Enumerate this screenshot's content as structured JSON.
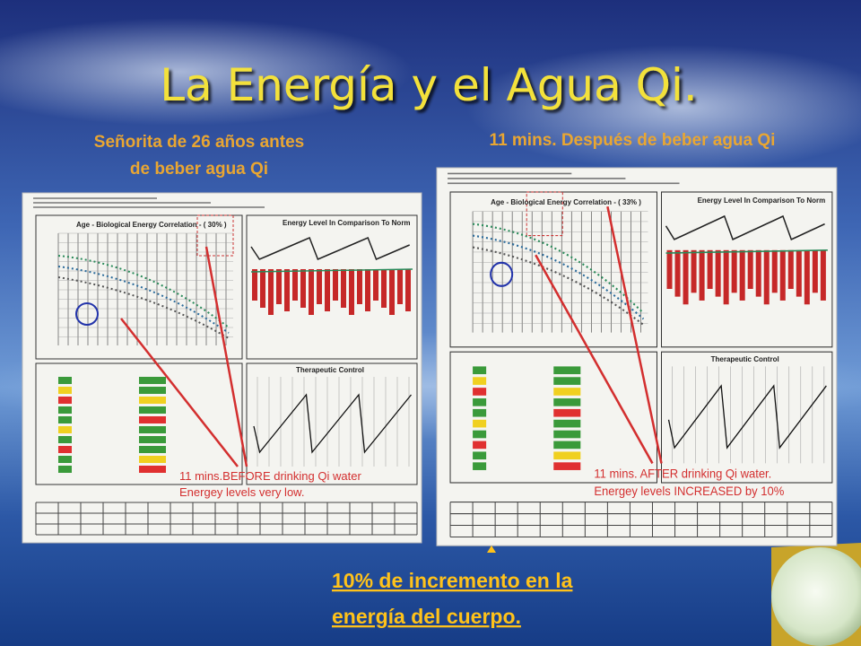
{
  "title": "La Energía y el Agua Qi.",
  "captions": [
    "Señorita de 26 años antes",
    "de beber agua Qi",
    "11 mins. Después de beber  agua Qi"
  ],
  "panels": [
    {
      "chart_titles": [
        "Age - Biological Energy Correlation - ( 30% )",
        "Energy Level In Comparison To Norm",
        "Therapeutic Control"
      ],
      "annotation": [
        "11 mins.BEFORE drinking Qi water",
        "Energey levels very low."
      ]
    },
    {
      "chart_titles": [
        "Age - Biological Energy Correlation - ( 33% )",
        "Energy Level In Comparison To Norm",
        "Therapeutic Control"
      ],
      "annotation": [
        "11 mins. AFTER drinking Qi water.",
        "Energey levels INCREASED by 10%"
      ]
    }
  ],
  "conclusion": [
    "10% de incremento en la",
    "energía del cuerpo."
  ]
}
